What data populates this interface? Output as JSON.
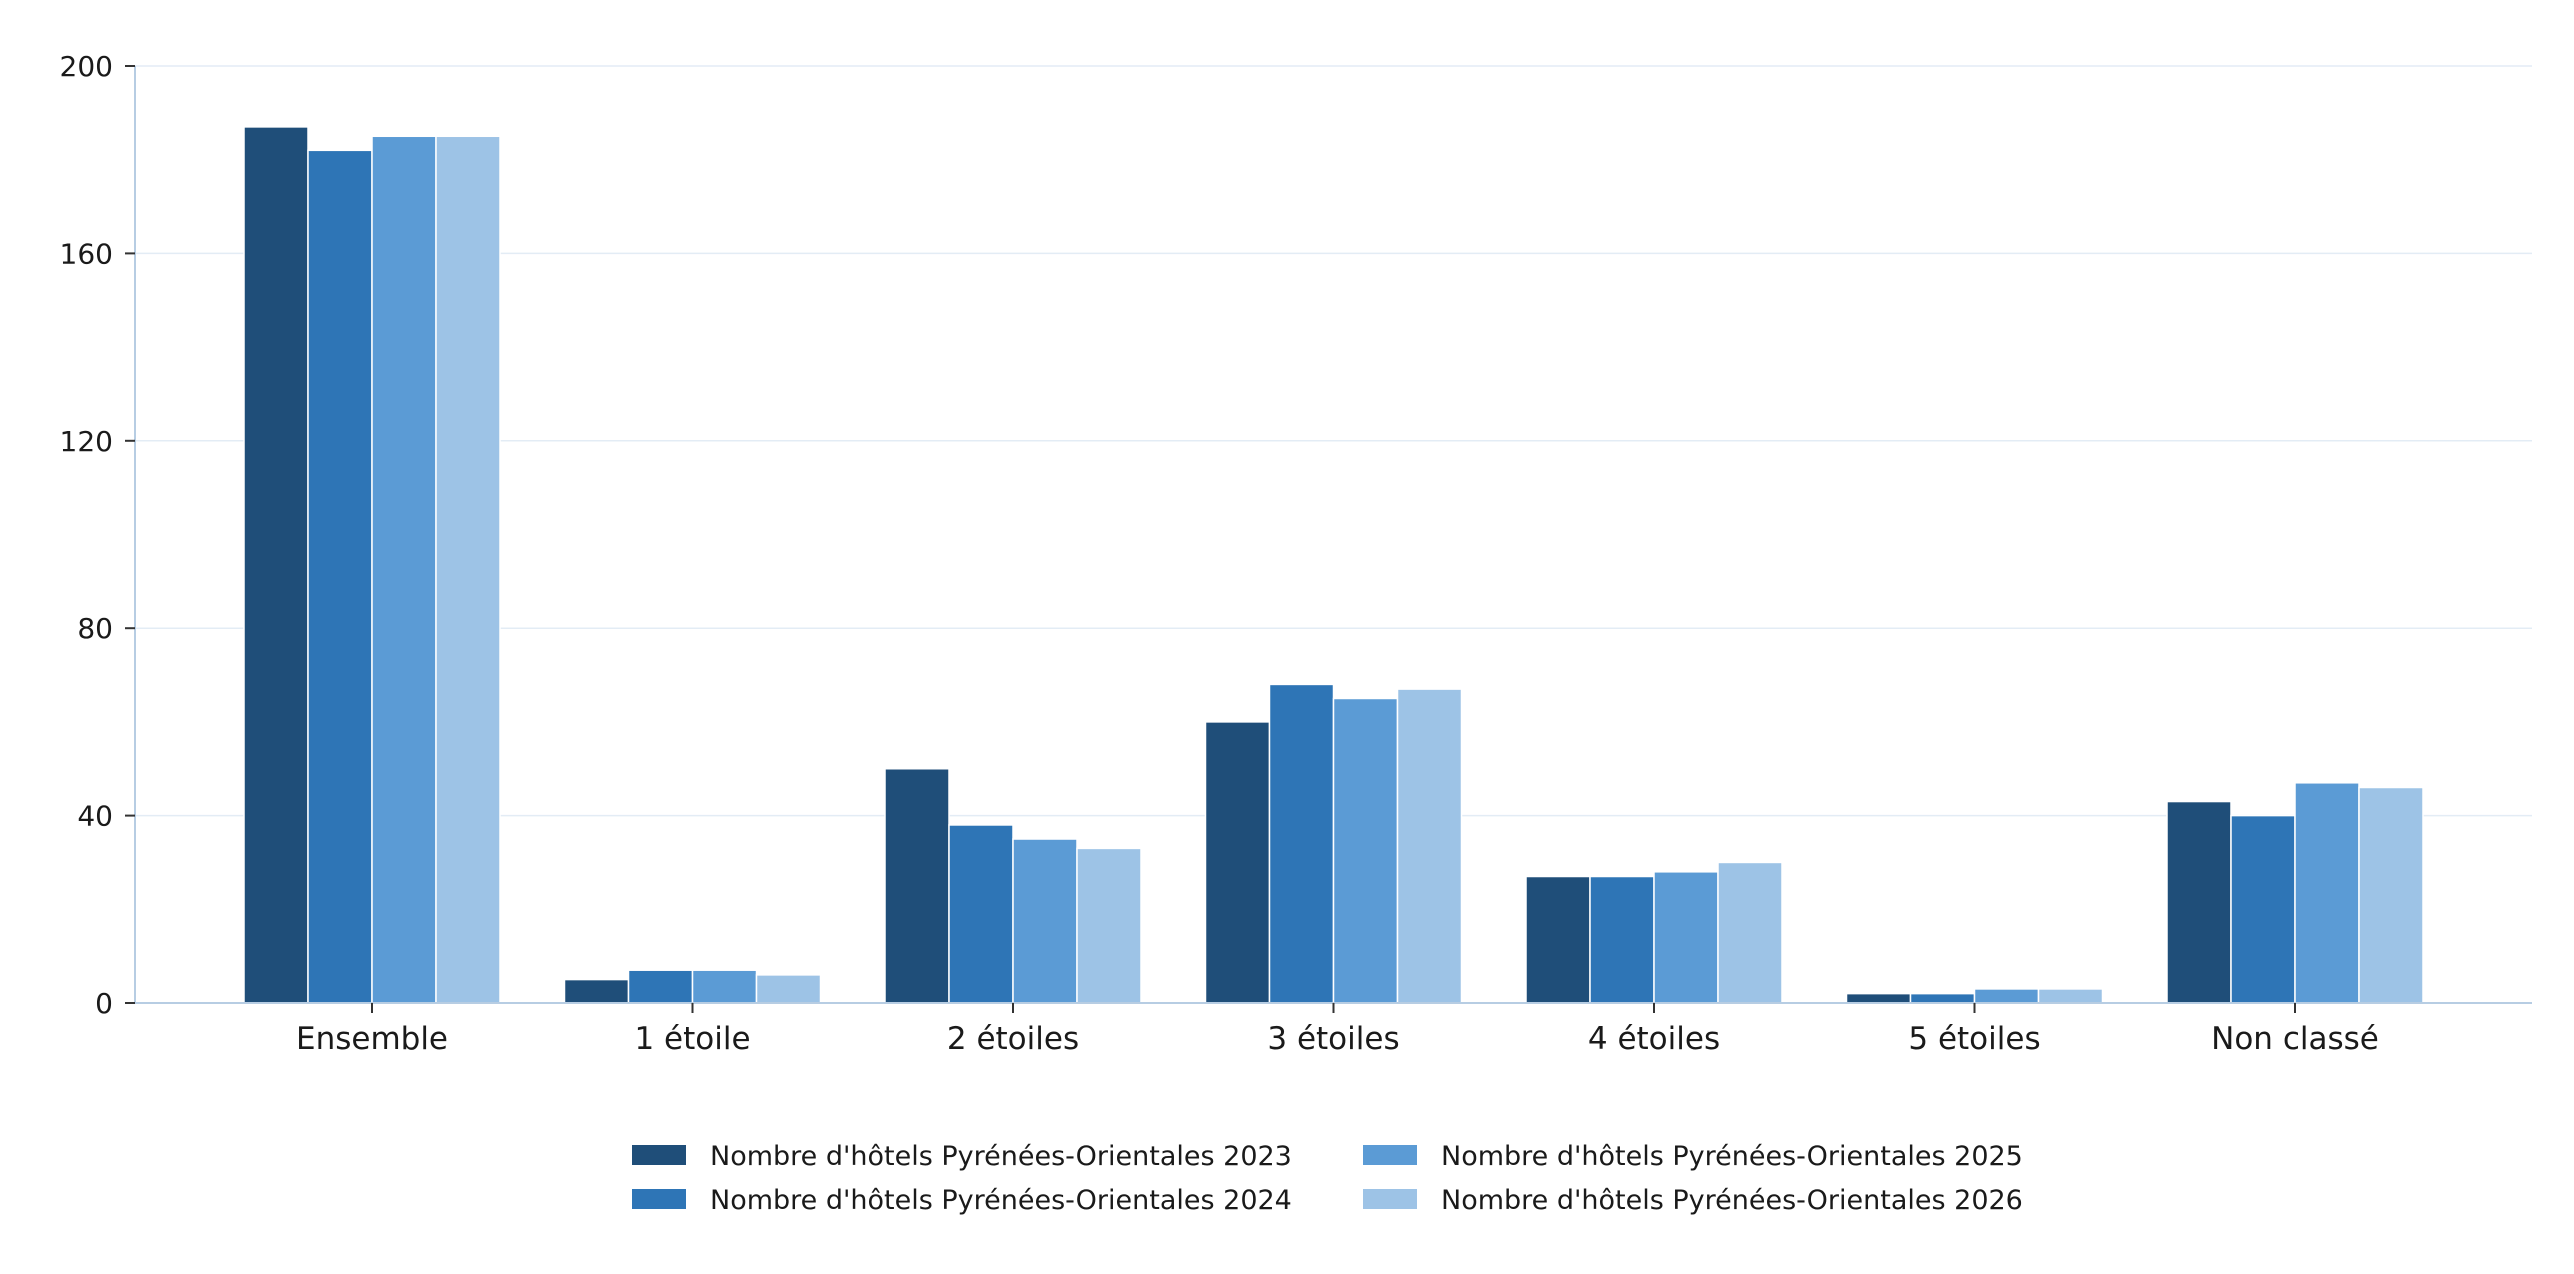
{
  "chart_data": {
    "type": "bar",
    "title": "",
    "xlabel": "",
    "ylabel": "",
    "categories": [
      "Ensemble",
      "1 étoile",
      "2 étoiles",
      "3 étoiles",
      "4 étoiles",
      "5 étoiles",
      "Non classé"
    ],
    "series": [
      {
        "name": "Nombre d'hôtels Pyrénées-Orientales 2023",
        "color": "#1f4e79",
        "values": [
          187,
          5,
          50,
          60,
          27,
          2,
          43
        ]
      },
      {
        "name": "Nombre d'hôtels Pyrénées-Orientales 2024",
        "color": "#2e75b6",
        "values": [
          182,
          7,
          38,
          68,
          27,
          2,
          40
        ]
      },
      {
        "name": "Nombre d'hôtels Pyrénées-Orientales 2025",
        "color": "#5b9bd5",
        "values": [
          185,
          7,
          35,
          65,
          28,
          3,
          47
        ]
      },
      {
        "name": "Nombre d'hôtels Pyrénées-Orientales 2026",
        "color": "#9dc3e6",
        "values": [
          185,
          6,
          33,
          67,
          30,
          3,
          46
        ]
      }
    ],
    "ylim": [
      0,
      200
    ],
    "yticks": [
      0,
      40,
      80,
      120,
      160,
      200
    ],
    "grid": true,
    "legend": "bottom-center"
  }
}
